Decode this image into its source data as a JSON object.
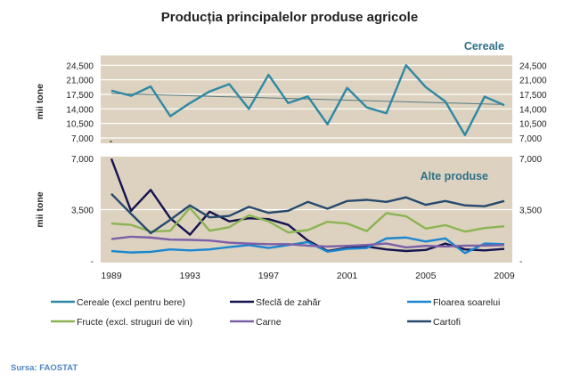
{
  "chart_data": [
    {
      "type": "line",
      "title": "Producția principalelor produse agricole",
      "panel_label": "Cereale",
      "ylabel": "mii tone",
      "ylim": [
        7000,
        24500
      ],
      "yticks": [
        "24,500",
        "21,000",
        "17,500",
        "14,000",
        "10,500",
        "7,000"
      ],
      "ytick_values": [
        24500,
        21000,
        17500,
        14000,
        10500,
        7000
      ],
      "grid": true,
      "background": "#dcd2bf",
      "x": [
        1989,
        1990,
        1991,
        1992,
        1993,
        1994,
        1995,
        1996,
        1997,
        1998,
        1999,
        2000,
        2001,
        2002,
        2003,
        2004,
        2005,
        2006,
        2007,
        2008,
        2009
      ],
      "series": [
        {
          "name": "Cereale (excl pentru bere)",
          "color": "#2f88a3",
          "values": [
            18400,
            17150,
            19400,
            12250,
            15400,
            18200,
            19950,
            14000,
            22200,
            15400,
            17000,
            10300,
            19050,
            14350,
            12950,
            24500,
            19250,
            15750,
            7700,
            16950,
            14900
          ]
        }
      ],
      "trendline": {
        "color": "#5a7a80",
        "start": 17700,
        "end": 15050
      }
    },
    {
      "type": "line",
      "panel_label": "Alte produse",
      "ylabel": "mii tone",
      "ylim": [
        0,
        7000
      ],
      "yticks": [
        "7,000",
        "3,500",
        "-"
      ],
      "ytick_values": [
        7000,
        3500,
        0
      ],
      "grid": true,
      "background": "#dcd2bf",
      "xticks": [
        "1989",
        "1993",
        "1997",
        "2001",
        "2005",
        "2009"
      ],
      "x": [
        1989,
        1990,
        1991,
        1992,
        1993,
        1994,
        1995,
        1996,
        1997,
        1998,
        1999,
        2000,
        2001,
        2002,
        2003,
        2004,
        2005,
        2006,
        2007,
        2008,
        2009
      ],
      "series": [
        {
          "name": "Sfeclă de zahăr",
          "color": "#14134f",
          "values": [
            6980,
            3420,
            4850,
            2910,
            1790,
            3360,
            2700,
            2910,
            2850,
            2460,
            1390,
            670,
            880,
            980,
            780,
            670,
            740,
            1180,
            780,
            710,
            820
          ]
        },
        {
          "name": "Floarea soarelui",
          "color": "#1a86cf",
          "values": [
            670,
            570,
            610,
            780,
            710,
            780,
            940,
            1080,
            880,
            1080,
            1280,
            630,
            820,
            880,
            1530,
            1590,
            1320,
            1530,
            530,
            1180,
            1140
          ]
        },
        {
          "name": "Fructe (excl. struguri de vin)",
          "color": "#8cb453",
          "values": [
            2550,
            2460,
            2000,
            2060,
            3620,
            2060,
            2300,
            3120,
            2700,
            1940,
            2100,
            2670,
            2550,
            2040,
            3260,
            3050,
            2200,
            2440,
            2000,
            2240,
            2360
          ]
        },
        {
          "name": "Carne",
          "color": "#7d5fa8",
          "values": [
            1490,
            1650,
            1590,
            1450,
            1430,
            1390,
            1240,
            1180,
            1140,
            1140,
            1040,
            980,
            1020,
            1080,
            1180,
            920,
            1020,
            980,
            1040,
            1040,
            1080
          ]
        },
        {
          "name": "Cartofi",
          "color": "#27496d",
          "values": [
            4580,
            3220,
            1890,
            2810,
            3790,
            2970,
            3070,
            3690,
            3280,
            3420,
            4030,
            3560,
            4090,
            4170,
            4030,
            4340,
            3830,
            4090,
            3790,
            3730,
            4090
          ]
        }
      ]
    }
  ],
  "legend": [
    {
      "label": "Cereale (excl pentru bere)",
      "color": "#2f88a3"
    },
    {
      "label": "Sfeclă de zahăr",
      "color": "#14134f"
    },
    {
      "label": "Floarea soarelui",
      "color": "#1a86cf"
    },
    {
      "label": "Fructe (excl. struguri de vin)",
      "color": "#8cb453"
    },
    {
      "label": "Carne",
      "color": "#7d5fa8"
    },
    {
      "label": "Cartofi",
      "color": "#27496d"
    }
  ],
  "source": "Sursa: FAOSTAT",
  "colors": {
    "panel_label": "#2e7189",
    "source": "#4f86c6",
    "title": "#222222"
  }
}
